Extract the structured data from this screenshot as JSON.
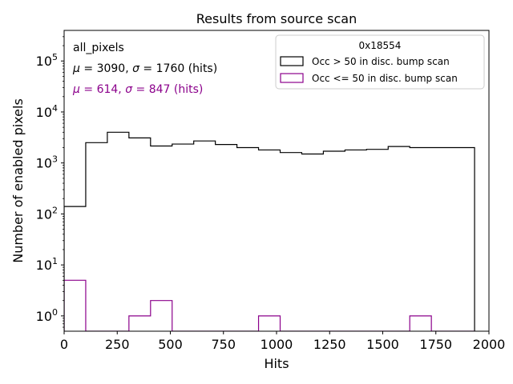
{
  "chart_data": {
    "type": "histogram",
    "title": "Results from source scan",
    "xlabel": "Hits",
    "ylabel": "Number of enabled pixels",
    "xlim": [
      0,
      2000
    ],
    "ylim_log10": [
      -0.3,
      5.6
    ],
    "yscale": "log",
    "xticks": [
      0,
      250,
      500,
      750,
      1000,
      1250,
      1500,
      1750,
      2000
    ],
    "yticks": [
      {
        "exp": 0,
        "base": "10",
        "sup": "0"
      },
      {
        "exp": 1,
        "base": "10",
        "sup": "1"
      },
      {
        "exp": 2,
        "base": "10",
        "sup": "2"
      },
      {
        "exp": 3,
        "base": "10",
        "sup": "3"
      },
      {
        "exp": 4,
        "base": "10",
        "sup": "4"
      },
      {
        "exp": 5,
        "base": "10",
        "sup": "5"
      }
    ],
    "bin_edges": [
      0,
      101.7,
      203.4,
      305.1,
      406.8,
      508.5,
      610.2,
      711.9,
      813.6,
      915.3,
      1017.0,
      1118.7,
      1220.4,
      1322.1,
      1423.8,
      1525.5,
      1627.2,
      1728.9,
      1830.6,
      1932.3
    ],
    "series": [
      {
        "name": "Occ > 50 in disc. bump scan",
        "color": "#000000",
        "counts": [
          140,
          2500,
          4000,
          3100,
          2150,
          2350,
          2700,
          2300,
          2000,
          1800,
          1600,
          1500,
          1700,
          1800,
          1850,
          2100,
          2000,
          2000,
          2000
        ]
      },
      {
        "name": "Occ <= 50 in disc. bump scan",
        "color": "#8b008b",
        "counts": [
          5,
          0,
          0,
          1,
          2,
          0,
          0,
          0,
          0,
          1,
          0,
          0,
          0,
          0,
          0,
          0,
          1,
          0,
          0
        ]
      }
    ],
    "annotations": [
      {
        "id": "dataset",
        "text": "all_pixels",
        "color": "#000000"
      },
      {
        "id": "stats1",
        "mu": "3090",
        "sigma": "1760",
        "unit": "(hits)",
        "color": "#000000"
      },
      {
        "id": "stats2",
        "mu": "614",
        "sigma": "847",
        "unit": "(hits)",
        "color": "#8b008b"
      }
    ],
    "legend": {
      "title": "0x18554",
      "position": "top-right"
    }
  }
}
